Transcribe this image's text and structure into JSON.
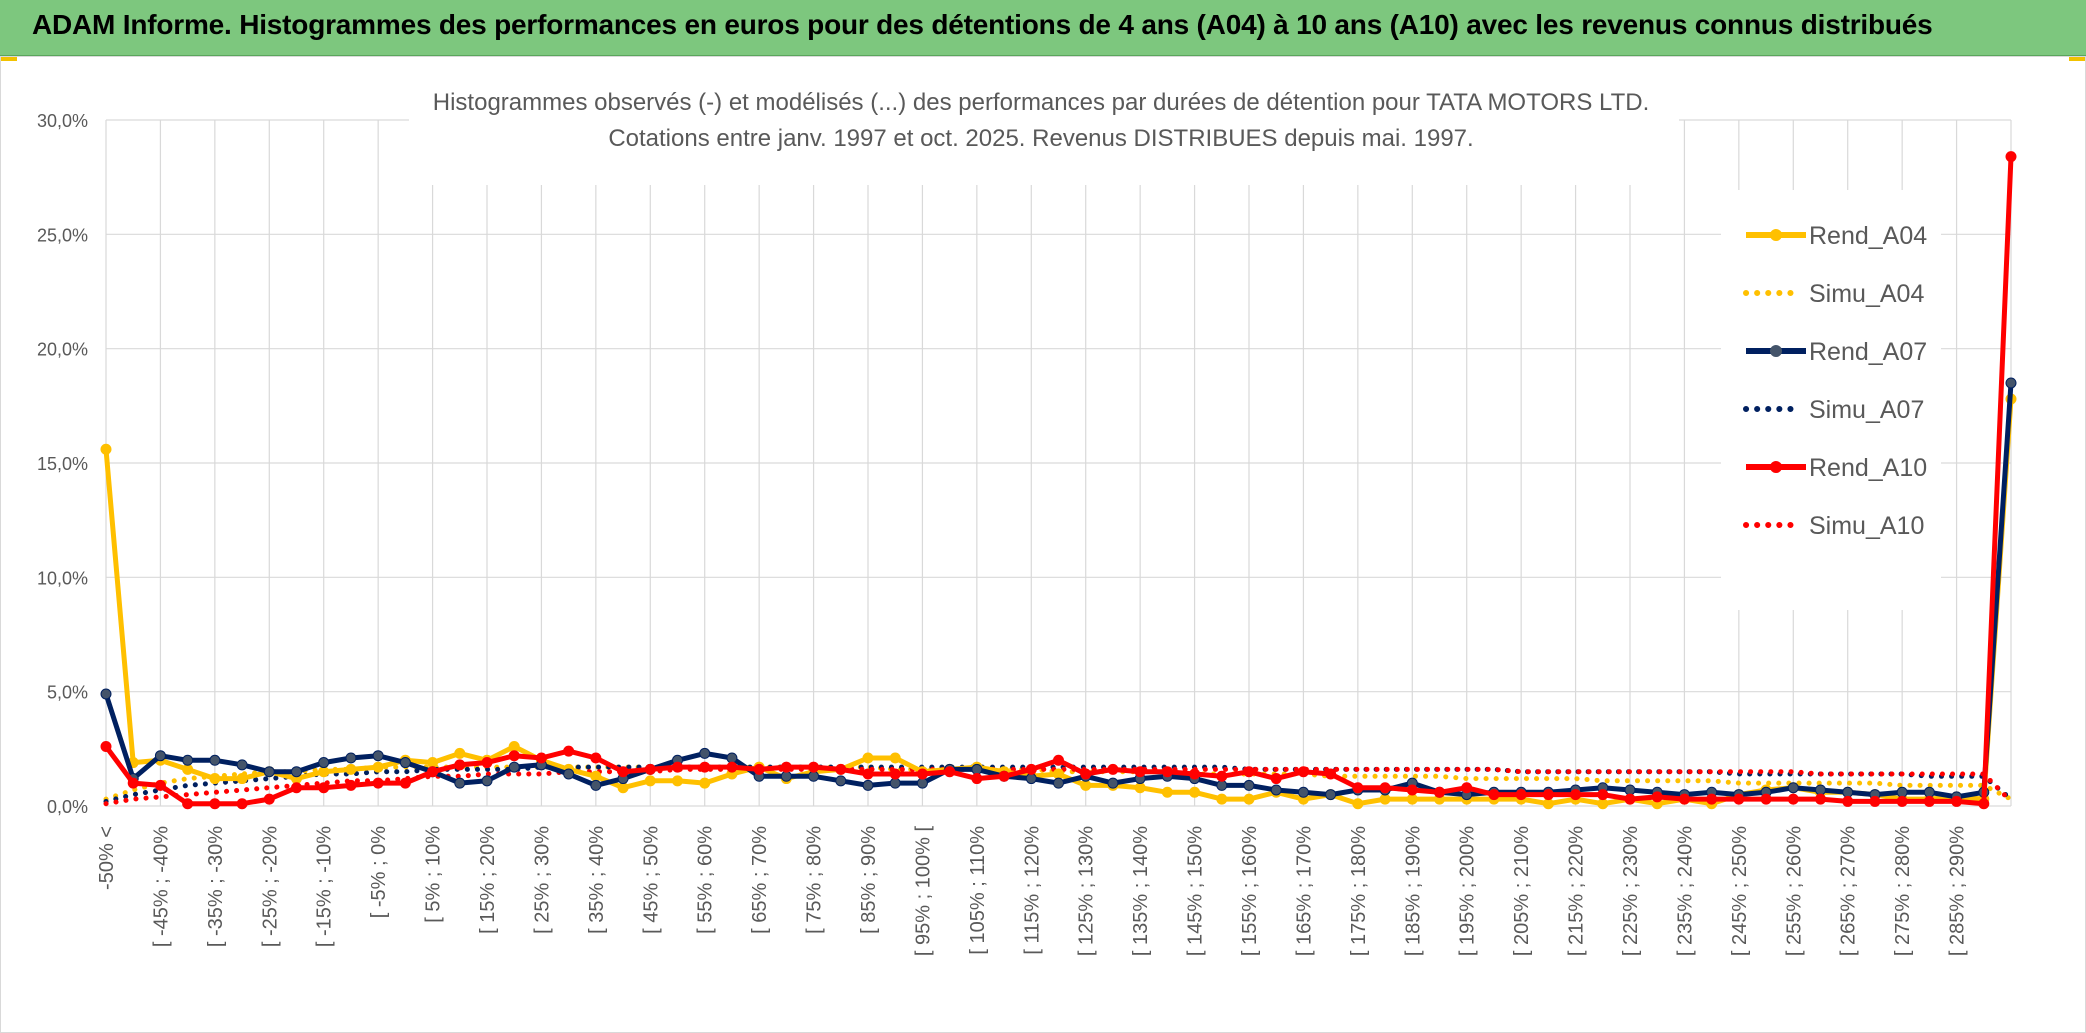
{
  "banner": {
    "title": "ADAM Informe. Histogrammes des performances en euros pour des détentions de 4 ans (A04) à 10 ans (A10) avec les revenus connus distribués"
  },
  "chart_data": {
    "type": "line",
    "title_line1": "Histogrammes observés (-) et modélisés (...) des performances par durées de détention pour TATA MOTORS LTD.",
    "title_line2": "Cotations entre janv. 1997 et oct. 2025. Revenus DISTRIBUES depuis mai. 1997.",
    "xlabel": "",
    "ylabel": "",
    "ylim": [
      0,
      30
    ],
    "y_ticks": [
      "0,0%",
      "5,0%",
      "10,0%",
      "15,0%",
      "20,0%",
      "25,0%",
      "30,0%"
    ],
    "grid": true,
    "legend_position": "right",
    "categories": [
      "-50% <",
      "[ -50% ; -45%",
      "[ -45% ; -40%",
      "[ -40% ; -35%",
      "[ -35% ; -30%",
      "[ -30% ; -25%",
      "[ -25% ; -20%",
      "[ -20% ; -15%",
      "[ -15% ; -10%",
      "[ -10% ; -5%",
      "[ -5% ; 0%",
      "[ 0% ; 5%",
      "[ 5% ; 10%",
      "[ 10% ; 15%",
      "[ 15% ; 20%",
      "[ 20% ; 25%",
      "[ 25% ; 30%",
      "[ 30% ; 35%",
      "[ 35% ; 40%",
      "[ 40% ; 45%",
      "[ 45% ; 50%",
      "[ 50% ; 55%",
      "[ 55% ; 60%",
      "[ 60% ; 65%",
      "[ 65% ; 70%",
      "[ 70% ; 75%",
      "[ 75% ; 80%",
      "[ 80% ; 85%",
      "[ 85% ; 90%",
      "[ 90% ; 95%",
      "[ 95% ; 100% [",
      "[ 100% ; 105%",
      "[ 105% ; 110%",
      "[ 110% ; 115%",
      "[ 115% ; 120%",
      "[ 120% ; 125%",
      "[ 125% ; 130%",
      "[ 130% ; 135%",
      "[ 135% ; 140%",
      "[ 140% ; 145%",
      "[ 145% ; 150%",
      "[ 150% ; 155%",
      "[ 155% ; 160%",
      "[ 160% ; 165%",
      "[ 165% ; 170%",
      "[ 170% ; 175%",
      "[ 175% ; 180%",
      "[ 180% ; 185%",
      "[ 185% ; 190%",
      "[ 190% ; 195%",
      "[ 195% ; 200%",
      "[ 200% ; 205%",
      "[ 205% ; 210%",
      "[ 210% ; 215%",
      "[ 215% ; 220%",
      "[ 220% ; 225%",
      "[ 225% ; 230%",
      "[ 230% ; 235%",
      "[ 235% ; 240%",
      "[ 240% ; 245%",
      "[ 245% ; 250%",
      "[ 250% ; 255%",
      "[ 255% ; 260%",
      "[ 260% ; 265%",
      "[ 265% ; 270%",
      "[ 270% ; 275%",
      "[ 275% ; 280%",
      "[ 280% ; 285%",
      "[ 285% ; 290%",
      "[ 290% ; 295%",
      "> 295%"
    ],
    "visible_tick_labels": [
      "-50% <",
      "[ -45% ; -40%",
      "[ -35% ; -30%",
      "[ -25% ; -20%",
      "[ -15% ; -10%",
      "[ -5% ; 0%",
      "[ 5% ; 10%",
      "[ 15% ; 20%",
      "[ 25% ; 30%",
      "[ 35% ; 40%",
      "[ 45% ; 50%",
      "[ 55% ; 60%",
      "[ 65% ; 70%",
      "[ 75% ; 80%",
      "[ 85% ; 90%",
      "[ 95% ; 100% [",
      "[ 105% ; 110%",
      "[ 115% ; 120%",
      "[ 125% ; 130%",
      "[ 135% ; 140%",
      "[ 145% ; 150%",
      "[ 155% ; 160%",
      "[ 165% ; 170%",
      "[ 175% ; 180%",
      "[ 185% ; 190%",
      "[ 195% ; 200%",
      "[ 205% ; 210%",
      "[ 215% ; 220%",
      "[ 225% ; 230%",
      "[ 235% ; 240%",
      "[ 245% ; 250%",
      "[ 255% ; 260%",
      "[ 265% ; 270%",
      "[ 275% ; 280%",
      "[ 285% ; 290%"
    ],
    "series": [
      {
        "name": "Rend_A04",
        "style": "solid",
        "color": "#ffc000",
        "values": [
          15.6,
          1.9,
          2.0,
          1.6,
          1.2,
          1.2,
          1.5,
          1.2,
          1.5,
          1.6,
          1.7,
          2.0,
          1.9,
          2.3,
          2.0,
          2.6,
          2.0,
          1.6,
          1.3,
          0.8,
          1.1,
          1.1,
          1.0,
          1.4,
          1.7,
          1.2,
          1.5,
          1.6,
          2.1,
          2.1,
          1.5,
          1.6,
          1.7,
          1.5,
          1.3,
          1.4,
          0.9,
          0.9,
          0.8,
          0.6,
          0.6,
          0.3,
          0.3,
          0.6,
          0.3,
          0.5,
          0.1,
          0.3,
          0.3,
          0.3,
          0.3,
          0.3,
          0.3,
          0.1,
          0.3,
          0.1,
          0.3,
          0.1,
          0.3,
          0.1,
          0.5,
          0.7,
          0.8,
          0.6,
          0.6,
          0.5,
          0.3,
          0.3,
          0.4,
          0.3,
          17.8
        ]
      },
      {
        "name": "Simu_A04",
        "style": "dotted",
        "color": "#ffc000",
        "values": [
          0.3,
          0.7,
          1.0,
          1.2,
          1.3,
          1.4,
          1.5,
          1.5,
          1.6,
          1.6,
          1.7,
          1.7,
          1.7,
          1.7,
          1.7,
          1.7,
          1.7,
          1.7,
          1.7,
          1.7,
          1.7,
          1.7,
          1.7,
          1.7,
          1.7,
          1.7,
          1.7,
          1.7,
          1.7,
          1.6,
          1.6,
          1.6,
          1.6,
          1.6,
          1.6,
          1.5,
          1.5,
          1.5,
          1.5,
          1.5,
          1.4,
          1.4,
          1.4,
          1.4,
          1.4,
          1.3,
          1.3,
          1.3,
          1.3,
          1.3,
          1.2,
          1.2,
          1.2,
          1.2,
          1.2,
          1.1,
          1.1,
          1.1,
          1.1,
          1.1,
          1.0,
          1.0,
          1.0,
          1.0,
          1.0,
          1.0,
          0.9,
          0.9,
          0.9,
          0.9,
          0.3
        ]
      },
      {
        "name": "Rend_A07",
        "style": "solid",
        "color": "#002060",
        "values": [
          4.9,
          1.2,
          2.2,
          2.0,
          2.0,
          1.8,
          1.5,
          1.5,
          1.9,
          2.1,
          2.2,
          1.9,
          1.5,
          1.0,
          1.1,
          1.7,
          1.8,
          1.4,
          0.9,
          1.2,
          1.6,
          2.0,
          2.3,
          2.1,
          1.3,
          1.3,
          1.3,
          1.1,
          0.9,
          1.0,
          1.0,
          1.6,
          1.6,
          1.3,
          1.2,
          1.0,
          1.3,
          1.0,
          1.2,
          1.3,
          1.2,
          0.9,
          0.9,
          0.7,
          0.6,
          0.5,
          0.7,
          0.7,
          1.0,
          0.6,
          0.5,
          0.6,
          0.6,
          0.6,
          0.7,
          0.8,
          0.7,
          0.6,
          0.5,
          0.6,
          0.5,
          0.6,
          0.8,
          0.7,
          0.6,
          0.5,
          0.6,
          0.6,
          0.4,
          0.6,
          18.5
        ]
      },
      {
        "name": "Simu_A07",
        "style": "dotted",
        "color": "#002060",
        "values": [
          0.2,
          0.5,
          0.7,
          0.9,
          1.0,
          1.1,
          1.2,
          1.3,
          1.4,
          1.4,
          1.5,
          1.5,
          1.6,
          1.6,
          1.6,
          1.6,
          1.7,
          1.7,
          1.7,
          1.7,
          1.7,
          1.7,
          1.7,
          1.7,
          1.7,
          1.7,
          1.7,
          1.7,
          1.7,
          1.7,
          1.7,
          1.7,
          1.7,
          1.7,
          1.7,
          1.7,
          1.7,
          1.7,
          1.7,
          1.7,
          1.7,
          1.7,
          1.6,
          1.6,
          1.6,
          1.6,
          1.6,
          1.6,
          1.6,
          1.6,
          1.6,
          1.6,
          1.5,
          1.5,
          1.5,
          1.5,
          1.5,
          1.5,
          1.5,
          1.5,
          1.4,
          1.4,
          1.4,
          1.4,
          1.4,
          1.4,
          1.4,
          1.3,
          1.3,
          1.3,
          0.3
        ]
      },
      {
        "name": "Rend_A10",
        "style": "solid",
        "color": "#ff0000",
        "values": [
          2.6,
          1.0,
          0.9,
          0.1,
          0.1,
          0.1,
          0.3,
          0.8,
          0.8,
          0.9,
          1.0,
          1.0,
          1.5,
          1.8,
          1.9,
          2.2,
          2.1,
          2.4,
          2.1,
          1.5,
          1.6,
          1.7,
          1.7,
          1.7,
          1.6,
          1.7,
          1.7,
          1.6,
          1.4,
          1.4,
          1.4,
          1.5,
          1.2,
          1.3,
          1.6,
          2.0,
          1.4,
          1.6,
          1.5,
          1.5,
          1.4,
          1.3,
          1.5,
          1.2,
          1.5,
          1.4,
          0.8,
          0.8,
          0.7,
          0.6,
          0.8,
          0.5,
          0.5,
          0.5,
          0.5,
          0.5,
          0.3,
          0.4,
          0.3,
          0.3,
          0.3,
          0.3,
          0.3,
          0.3,
          0.2,
          0.2,
          0.2,
          0.2,
          0.2,
          0.1,
          28.4
        ]
      },
      {
        "name": "Simu_A10",
        "style": "dotted",
        "color": "#ff0000",
        "values": [
          0.1,
          0.3,
          0.4,
          0.5,
          0.6,
          0.7,
          0.8,
          0.9,
          1.0,
          1.1,
          1.1,
          1.2,
          1.3,
          1.3,
          1.4,
          1.4,
          1.4,
          1.5,
          1.5,
          1.5,
          1.5,
          1.6,
          1.6,
          1.6,
          1.6,
          1.6,
          1.6,
          1.6,
          1.6,
          1.6,
          1.6,
          1.6,
          1.6,
          1.6,
          1.6,
          1.6,
          1.6,
          1.6,
          1.6,
          1.6,
          1.6,
          1.6,
          1.6,
          1.6,
          1.6,
          1.6,
          1.6,
          1.6,
          1.6,
          1.6,
          1.6,
          1.6,
          1.5,
          1.5,
          1.5,
          1.5,
          1.5,
          1.5,
          1.5,
          1.5,
          1.5,
          1.5,
          1.5,
          1.4,
          1.4,
          1.4,
          1.4,
          1.4,
          1.4,
          1.4,
          0.2
        ]
      }
    ]
  }
}
